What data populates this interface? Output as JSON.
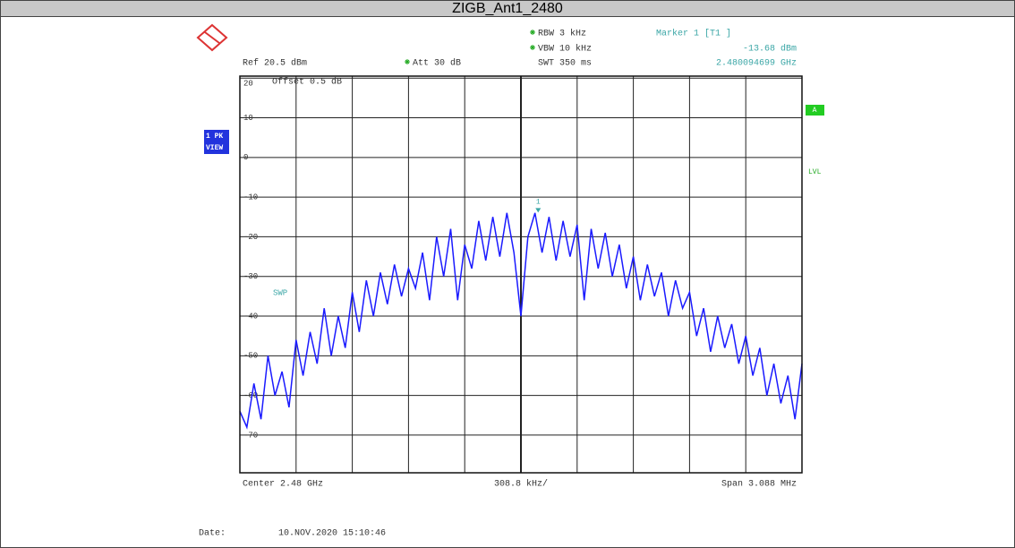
{
  "chart_data": {
    "type": "line",
    "title": "ZIGB_Ant1_2480",
    "rbw": "RBW 3 kHz",
    "vbw": "VBW 10 kHz",
    "swt": "SWT 350 ms",
    "ref": "Ref  20.5 dBm",
    "att": "Att  30 dB",
    "offset": "Offset  0.5 dB",
    "marker_title": "Marker 1 [T1 ]",
    "view_label": [
      "1 PK",
      "VIEW"
    ],
    "trace_label": "A",
    "lvl": "LVL",
    "swp": "SWP",
    "center": "Center  2.48 GHz",
    "per_div": "308.8 kHz/",
    "span": "Span  3.088 MHz",
    "date_label": "Date:",
    "date": "10.NOV.2020  15:10:46",
    "xlim": [
      2478.456,
      2481.544
    ],
    "ylim": [
      -79.5,
      20.5
    ],
    "yticks": [
      20,
      10,
      0,
      -10,
      -20,
      -30,
      -40,
      -50,
      -60,
      -70
    ],
    "xticks": [
      2478.7648,
      2479.0736,
      2479.3824,
      2479.6912,
      2480.0,
      2480.3088,
      2480.6176,
      2480.9264,
      2481.2352
    ],
    "grid": true,
    "x": [
      2478.456,
      2478.4946,
      2478.5332,
      2478.5718,
      2478.6104,
      2478.649,
      2478.6876,
      2478.7262,
      2478.7648,
      2478.8034,
      2478.842,
      2478.8806,
      2478.9192,
      2478.9578,
      2478.9964,
      2479.035,
      2479.0736,
      2479.1122,
      2479.1508,
      2479.1894,
      2479.228,
      2479.2666,
      2479.3052,
      2479.3438,
      2479.3824,
      2479.421,
      2479.4596,
      2479.4982,
      2479.5368,
      2479.5754,
      2479.614,
      2479.6526,
      2479.6912,
      2479.7298,
      2479.7684,
      2479.807,
      2479.8456,
      2479.8842,
      2479.9228,
      2479.9614,
      2480.0,
      2480.0386,
      2480.0772,
      2480.1158,
      2480.1544,
      2480.193,
      2480.2316,
      2480.2702,
      2480.3088,
      2480.3474,
      2480.386,
      2480.4246,
      2480.4632,
      2480.5018,
      2480.5404,
      2480.579,
      2480.6176,
      2480.6562,
      2480.6948,
      2480.7334,
      2480.772,
      2480.8106,
      2480.8492,
      2480.8878,
      2480.9264,
      2480.965,
      2481.0036,
      2481.0422,
      2481.0808,
      2481.1194,
      2481.158,
      2481.1966,
      2481.2352,
      2481.2738,
      2481.3124,
      2481.351,
      2481.3896,
      2481.4282,
      2481.4668,
      2481.5054,
      2481.544
    ],
    "series": [
      {
        "color": "#1a1aff",
        "values": [
          -64,
          -68,
          -57,
          -66,
          -50,
          -60,
          -54,
          -63,
          -46,
          -55,
          -44,
          -52,
          -38,
          -50,
          -40,
          -48,
          -34,
          -44,
          -31,
          -40,
          -29,
          -37,
          -27,
          -35,
          -28,
          -33,
          -24,
          -36,
          -20,
          -30,
          -18,
          -36,
          -22,
          -28,
          -16,
          -26,
          -15,
          -25,
          -14,
          -24,
          -40,
          -20,
          -14,
          -24,
          -15,
          -26,
          -16,
          -25,
          -17,
          -36,
          -18,
          -28,
          -19,
          -30,
          -22,
          -33,
          -25,
          -36,
          -27,
          -35,
          -29,
          -40,
          -31,
          -38,
          -34,
          -45,
          -38,
          -49,
          -40,
          -48,
          -42,
          -52,
          -45,
          -55,
          -48,
          -60,
          -52,
          -62,
          -55,
          -66,
          -52
        ]
      }
    ],
    "marker": {
      "name": "1",
      "x": 2480.094699,
      "value": -13.68,
      "value_label": "-13.68 dBm",
      "x_label": "2.480094699 GHz"
    }
  }
}
